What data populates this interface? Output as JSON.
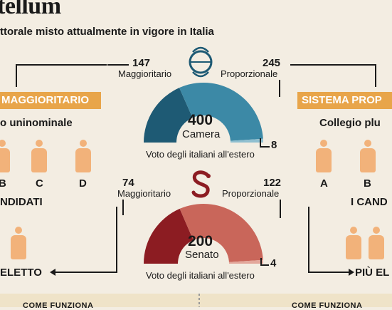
{
  "header": {
    "title": "tellum",
    "subtitle": "ttorale misto attualmente in vigore in Italia"
  },
  "left_panel": {
    "banner": "MAGGIORITARIO",
    "collegio": "o uninominale",
    "letters": [
      "B",
      "C",
      "D"
    ],
    "candidates": "NDIDATI",
    "elected": "ELETTO"
  },
  "right_panel": {
    "banner": "SISTEMA PROP",
    "collegio": "Collegio plu",
    "letters": [
      "A",
      "B"
    ],
    "candidates": "I CAND",
    "elected": "PIÙ EL"
  },
  "camera": {
    "maggioritario_count": "147",
    "maggioritario_label": "Maggioritario",
    "proporzionale_count": "245",
    "proporzionale_label": "Proporzionale",
    "total": "400",
    "name": "Camera",
    "estero_count": "8",
    "estero_label": "Voto degli italiani all'estero",
    "colors": {
      "maggioritario": "#1e5a74",
      "proporzionale": "#3c89a6",
      "estero": "#8fbfd0"
    }
  },
  "senato": {
    "maggioritario_count": "74",
    "maggioritario_label": "Maggioritario",
    "proporzionale_count": "122",
    "proporzionale_label": "Proporzionale",
    "total": "200",
    "name": "Senato",
    "estero_count": "4",
    "estero_label": "Voto degli italiani all'estero",
    "colors": {
      "maggioritario": "#8c1c22",
      "proporzionale": "#c9665a",
      "estero": "#e3a79b"
    }
  },
  "footer": {
    "left": "COME FUNZIONA",
    "right": "COME FUNZIONA"
  }
}
